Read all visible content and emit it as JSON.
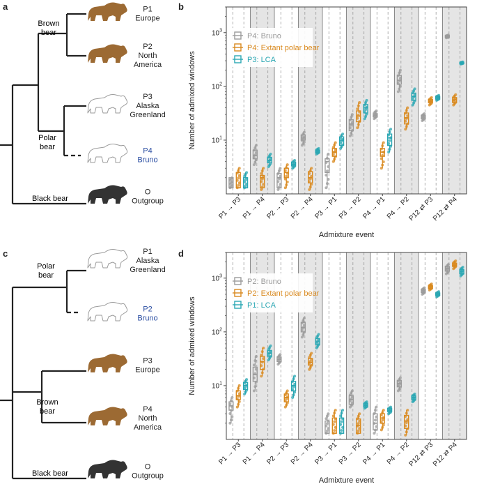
{
  "panels": {
    "a": "a",
    "b": "b",
    "c": "c",
    "d": "d"
  },
  "colors": {
    "bruno": "#9b9b9b",
    "extant": "#d9891e",
    "lca": "#2aa7b3",
    "brown_bear": "#9c6a33",
    "black_bear": "#333333",
    "highlight_text": "#2b4ea2",
    "shade": "#e5e5e5"
  },
  "tree_a": {
    "clades": [
      {
        "label": "Brown\nbear"
      },
      {
        "label": "Polar\nbear"
      },
      {
        "label": "Black bear"
      }
    ],
    "taxa": [
      {
        "id": "P1",
        "sub": [
          "Europe"
        ],
        "icon": "brown-bear-icon",
        "highlight": false
      },
      {
        "id": "P2",
        "sub": [
          "North",
          "America"
        ],
        "icon": "brown-bear-icon",
        "highlight": false
      },
      {
        "id": "P3",
        "sub": [
          "Alaska",
          "Greenland"
        ],
        "icon": "polar-bear-icon",
        "highlight": false
      },
      {
        "id": "P4",
        "sub": [
          "Bruno"
        ],
        "icon": "polar-bear-icon",
        "highlight": true
      },
      {
        "id": "O",
        "sub": [
          "Outgroup"
        ],
        "icon": "black-bear-icon",
        "highlight": false
      }
    ]
  },
  "tree_c": {
    "clades": [
      {
        "label": "Polar\nbear"
      },
      {
        "label": "Brown\nbear"
      },
      {
        "label": "Black bear"
      }
    ],
    "taxa": [
      {
        "id": "P1",
        "sub": [
          "Alaska",
          "Greenland"
        ],
        "icon": "polar-bear-icon",
        "highlight": false
      },
      {
        "id": "P2",
        "sub": [
          "Bruno"
        ],
        "icon": "polar-bear-icon",
        "highlight": true
      },
      {
        "id": "P3",
        "sub": [
          "Europe"
        ],
        "icon": "brown-bear-icon",
        "highlight": false
      },
      {
        "id": "P4",
        "sub": [
          "North",
          "America"
        ],
        "icon": "brown-bear-icon",
        "highlight": false
      },
      {
        "id": "O",
        "sub": [
          "Outgroup"
        ],
        "icon": "black-bear-icon",
        "highlight": false
      }
    ]
  },
  "chart_data": [
    {
      "panel": "b",
      "type": "box",
      "ylabel": "Number of admixed windows",
      "xlabel": "Admixture event",
      "yscale": "log",
      "ylim": [
        1,
        3000
      ],
      "yticks": [
        {
          "v": 10,
          "label": "10",
          "sup": "1"
        },
        {
          "v": 100,
          "label": "10",
          "sup": "2"
        },
        {
          "v": 1000,
          "label": "10",
          "sup": "3"
        }
      ],
      "categories": [
        {
          "main": "P1 → P3"
        },
        {
          "main": "P1 → P4"
        },
        {
          "main": "P2 → P3"
        },
        {
          "main": "P2 → P4"
        },
        {
          "main": "P3 → P1"
        },
        {
          "main": "P3 → P2"
        },
        {
          "main": "P4 → P1"
        },
        {
          "main": "P4 → P2"
        },
        {
          "main": "P12 ⇄ P3"
        },
        {
          "main": "P12 ⇄ P4"
        }
      ],
      "shaded": [
        1,
        3,
        5,
        7,
        9
      ],
      "legend": [
        {
          "label": "P4: Bruno",
          "color": "#9b9b9b"
        },
        {
          "label": "P4: Extant polar bear",
          "color": "#d9891e"
        },
        {
          "label": "P3: LCA",
          "color": "#2aa7b3"
        }
      ],
      "series": [
        {
          "name": "P4: Bruno",
          "color": "#9b9b9b",
          "boxes": [
            [
              1.3,
              1.3,
              1.3,
              2,
              2
            ],
            [
              3.5,
              4.5,
              5.2,
              6.5,
              8
            ],
            [
              1.2,
              1.3,
              2,
              2.4,
              3
            ],
            [
              8,
              10,
              11,
              12.5,
              14
            ],
            [
              1.3,
              2.5,
              4,
              4.5,
              5.5
            ],
            [
              12,
              15,
              20,
              24,
              30
            ],
            [
              25,
              27,
              29,
              31,
              35
            ],
            [
              80,
              110,
              130,
              160,
              200
            ],
            [
              23,
              25,
              27,
              29,
              31
            ],
            [
              800,
              820,
              850,
              880,
              900
            ]
          ]
        },
        {
          "name": "P4: Extant polar bear",
          "color": "#d9891e",
          "boxes": [
            [
              1.3,
              1.3,
              1.3,
              2.5,
              3
            ],
            [
              1.2,
              1.3,
              2,
              2.2,
              3
            ],
            [
              1.3,
              2,
              2.5,
              3,
              3.5
            ],
            [
              1.2,
              1.6,
              2,
              2.6,
              3
            ],
            [
              4,
              5,
              6,
              7,
              9
            ],
            [
              17,
              22,
              28,
              35,
              50
            ],
            [
              3,
              5,
              6,
              7,
              9
            ],
            [
              16,
              20,
              26,
              32,
              40
            ],
            [
              45,
              50,
              53,
              57,
              62
            ],
            [
              45,
              50,
              56,
              62,
              70
            ]
          ]
        },
        {
          "name": "P3: LCA",
          "color": "#2aa7b3",
          "boxes": [
            [
              1.3,
              1.3,
              1.3,
              2,
              2.5
            ],
            [
              3.2,
              3.8,
              4.2,
              4.8,
              5.5
            ],
            [
              3,
              3.3,
              3.5,
              3.9,
              4.2
            ],
            [
              5.5,
              5.8,
              6,
              6.5,
              7
            ],
            [
              7,
              8,
              10,
              11.5,
              13
            ],
            [
              25,
              32,
              40,
              46,
              55
            ],
            [
              6,
              8,
              11,
              13,
              16
            ],
            [
              45,
              55,
              65,
              75,
              90
            ],
            [
              55,
              58,
              62,
              65,
              68
            ],
            [
              260,
              265,
              270,
              276,
              285
            ]
          ]
        }
      ]
    },
    {
      "panel": "d",
      "type": "box",
      "ylabel": "Number of admixed windows",
      "xlabel": "Admixture event",
      "yscale": "log",
      "ylim": [
        1,
        3000
      ],
      "yticks": [
        {
          "v": 10,
          "label": "10",
          "sup": "1"
        },
        {
          "v": 100,
          "label": "10",
          "sup": "2"
        },
        {
          "v": 1000,
          "label": "10",
          "sup": "3"
        }
      ],
      "categories": [
        {
          "main": "P1 → P3"
        },
        {
          "main": "P1 → P4"
        },
        {
          "main": "P2 → P3"
        },
        {
          "main": "P2 → P4"
        },
        {
          "main": "P3 → P1"
        },
        {
          "main": "P3 → P2"
        },
        {
          "main": "P4 → P1"
        },
        {
          "main": "P4 → P2"
        },
        {
          "main": "P12 ⇄ P3"
        },
        {
          "main": "P12 ⇄ P4"
        }
      ],
      "shaded": [
        1,
        3,
        5,
        7,
        9
      ],
      "legend": [
        {
          "label": "P2: Bruno",
          "color": "#9b9b9b"
        },
        {
          "label": "P2: Extant polar bear",
          "color": "#d9891e"
        },
        {
          "label": "P1: LCA",
          "color": "#2aa7b3"
        }
      ],
      "series": [
        {
          "name": "P2: Bruno",
          "color": "#9b9b9b",
          "boxes": [
            [
              2,
              3.5,
              4.2,
              5,
              6
            ],
            [
              8,
              12,
              16,
              22,
              35
            ],
            [
              25,
              28,
              31,
              34,
              38
            ],
            [
              80,
              100,
              120,
              150,
              180
            ],
            [
              1.3,
              1.3,
              1.3,
              2.2,
              3
            ],
            [
              4,
              4.5,
              5.5,
              6.5,
              8
            ],
            [
              1.3,
              1.5,
              2,
              3,
              4
            ],
            [
              8,
              9.5,
              11,
              12.5,
              14
            ],
            [
              500,
              540,
              580,
              620,
              660
            ],
            [
              1200,
              1350,
              1500,
              1650,
              1800
            ]
          ]
        },
        {
          "name": "P2: Extant polar bear",
          "color": "#d9891e",
          "boxes": [
            [
              4,
              5.5,
              6.5,
              8,
              10
            ],
            [
              15,
              20,
              28,
              35,
              50
            ],
            [
              4,
              5,
              6,
              7,
              8
            ],
            [
              20,
              24,
              27,
              32,
              40
            ],
            [
              1.3,
              1.3,
              1.3,
              2.5,
              3.5
            ],
            [
              1.3,
              1.3,
              1.8,
              2.4,
              3
            ],
            [
              1.5,
              2,
              2.5,
              3,
              3.5
            ],
            [
              1.2,
              1.6,
              2.2,
              2.8,
              3.5
            ],
            [
              600,
              640,
              680,
              720,
              780
            ],
            [
              1500,
              1650,
              1750,
              1900,
              2100
            ]
          ]
        },
        {
          "name": "P1: LCA",
          "color": "#2aa7b3",
          "boxes": [
            [
              7,
              8.5,
              10,
              11.5,
              13
            ],
            [
              30,
              35,
              40,
              45,
              55
            ],
            [
              6,
              8,
              10,
              12,
              15
            ],
            [
              50,
              58,
              65,
              75,
              90
            ],
            [
              1.3,
              1.3,
              1.3,
              2.5,
              3.5
            ],
            [
              3.8,
              4,
              4.3,
              4.7,
              5
            ],
            [
              3,
              3.3,
              3.5,
              3.8,
              4
            ],
            [
              5,
              5.5,
              6,
              6.5,
              7
            ],
            [
              450,
              480,
              500,
              530,
              560
            ],
            [
              1100,
              1200,
              1350,
              1450,
              1600
            ]
          ]
        }
      ]
    }
  ]
}
